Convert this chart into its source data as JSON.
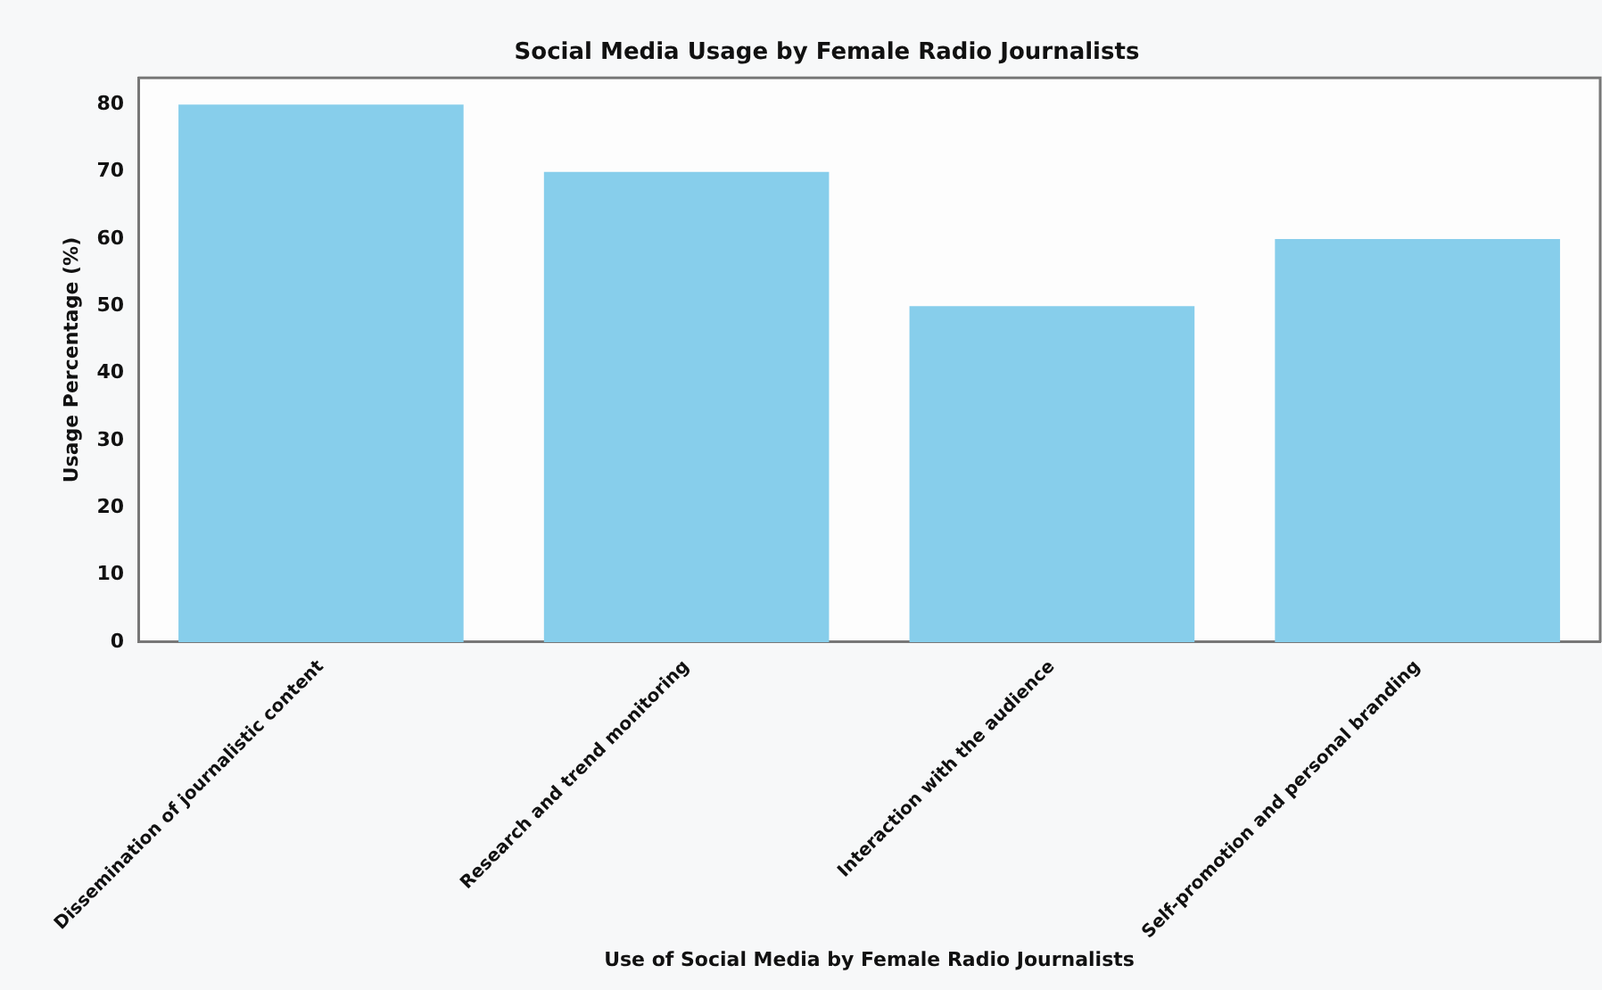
{
  "chart_data": {
    "type": "bar",
    "title": "Social Media Usage by Female Radio Journalists",
    "xlabel": "Use of Social Media by Female Radio Journalists",
    "ylabel": "Usage Percentage (%)",
    "categories": [
      "Dissemination of journalistic content",
      "Research and trend monitoring",
      "Interaction with the audience",
      "Self-promotion and personal branding"
    ],
    "values": [
      80,
      70,
      50,
      60
    ],
    "color": "#87ceeb",
    "ylim": [
      0,
      84
    ],
    "yticks": [
      0,
      10,
      20,
      30,
      40,
      50,
      60,
      70,
      80
    ],
    "grid": false,
    "legend": false
  }
}
